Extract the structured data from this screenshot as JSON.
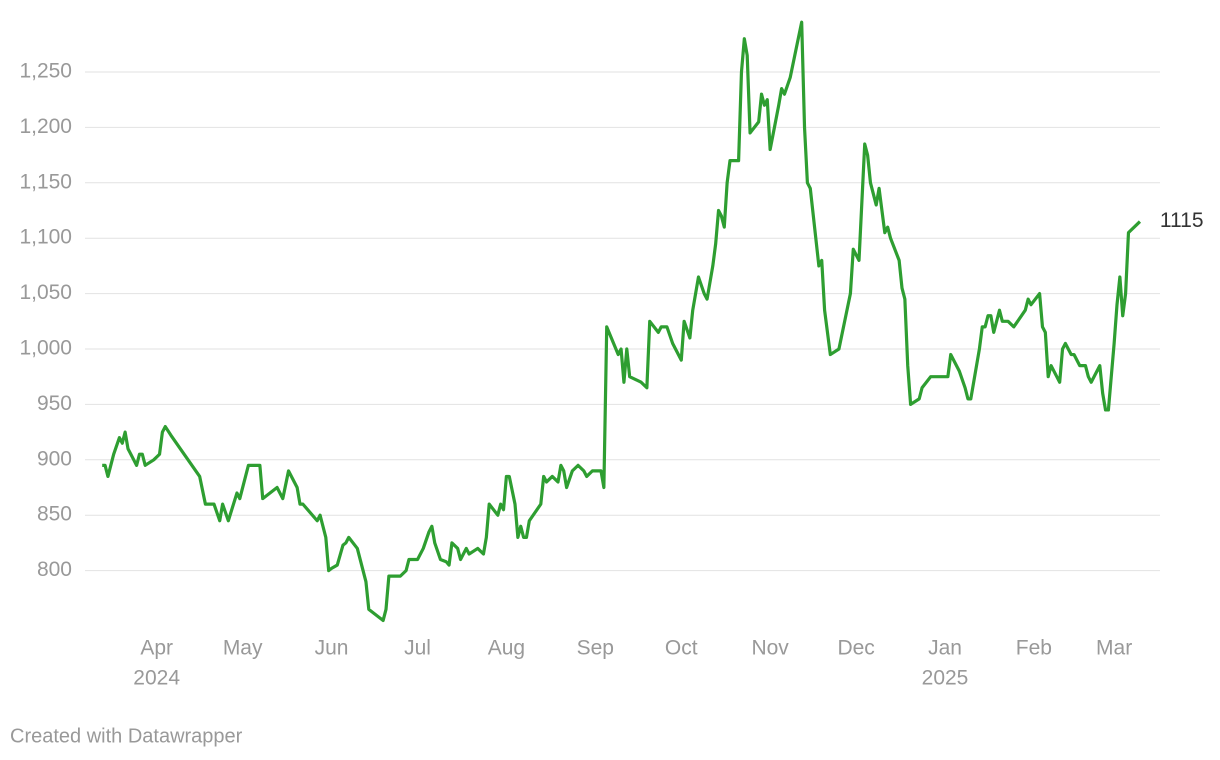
{
  "chart_data": {
    "type": "line",
    "x": [
      0,
      1,
      2,
      4,
      6,
      7,
      8,
      9,
      11,
      12,
      13,
      14,
      15,
      18,
      20,
      21,
      22,
      24,
      34,
      36,
      39,
      41,
      42,
      44,
      47,
      48,
      51,
      55,
      56,
      61,
      63,
      65,
      68,
      69,
      70,
      75,
      76,
      77,
      78,
      79,
      80,
      82,
      84,
      85,
      86,
      89,
      92,
      93,
      98,
      99,
      100,
      104,
      106,
      107,
      110,
      112,
      114,
      115,
      116,
      118,
      120,
      121,
      122,
      124,
      125,
      127,
      128,
      131,
      133,
      134,
      135,
      138,
      139,
      140,
      141,
      142,
      144,
      145,
      146,
      147,
      148,
      149,
      153,
      154,
      155,
      157,
      159,
      160,
      161,
      162,
      164,
      166,
      168,
      169,
      171,
      174,
      175,
      176,
      180,
      181,
      182,
      183,
      184,
      188,
      190,
      191,
      194,
      195,
      197,
      199,
      202,
      203,
      205,
      206,
      208,
      210,
      211,
      213,
      214,
      215,
      216,
      217,
      218,
      219,
      222,
      223,
      224,
      225,
      226,
      229,
      230,
      231,
      232,
      233,
      236,
      237,
      238,
      240,
      242,
      244,
      245,
      246,
      247,
      250,
      251,
      252,
      254,
      257,
      259,
      261,
      262,
      264,
      266,
      267,
      268,
      270,
      271,
      273,
      274,
      275,
      278,
      279,
      280,
      281,
      282,
      285,
      286,
      289,
      295,
      296,
      299,
      301,
      302,
      303,
      306,
      307,
      308,
      309,
      310,
      311,
      313,
      314,
      316,
      318,
      322,
      323,
      324,
      327,
      328,
      329,
      330,
      331,
      333,
      334,
      335,
      336,
      338,
      339,
      341,
      343,
      344,
      345,
      348,
      349,
      350,
      351,
      353,
      354,
      355,
      356,
      357,
      358,
      362
    ],
    "series": [
      {
        "color": "#2e9e31",
        "values": [
          895,
          895,
          885,
          905,
          920,
          915,
          925,
          910,
          900,
          895,
          905,
          905,
          895,
          900,
          905,
          925,
          930,
          922,
          885,
          860,
          860,
          845,
          860,
          845,
          870,
          865,
          895,
          895,
          865,
          875,
          865,
          890,
          875,
          860,
          860,
          845,
          850,
          840,
          830,
          800,
          802,
          805,
          823,
          825,
          830,
          820,
          790,
          765,
          755,
          765,
          795,
          795,
          800,
          810,
          810,
          820,
          835,
          840,
          825,
          810,
          808,
          805,
          825,
          820,
          810,
          820,
          815,
          820,
          815,
          830,
          860,
          850,
          860,
          855,
          885,
          885,
          860,
          830,
          840,
          830,
          830,
          845,
          860,
          885,
          880,
          885,
          880,
          895,
          890,
          875,
          890,
          895,
          890,
          885,
          890,
          890,
          875,
          1020,
          995,
          1000,
          970,
          1000,
          975,
          970,
          965,
          1025,
          1015,
          1020,
          1020,
          1005,
          990,
          1025,
          1010,
          1035,
          1065,
          1050,
          1045,
          1075,
          1095,
          1125,
          1120,
          1110,
          1150,
          1170,
          1170,
          1250,
          1280,
          1265,
          1195,
          1205,
          1230,
          1220,
          1225,
          1180,
          1220,
          1235,
          1230,
          1245,
          1270,
          1295,
          1200,
          1150,
          1145,
          1075,
          1080,
          1035,
          995,
          1000,
          1025,
          1050,
          1090,
          1080,
          1185,
          1175,
          1150,
          1130,
          1145,
          1105,
          1110,
          1100,
          1080,
          1055,
          1045,
          985,
          950,
          955,
          965,
          975,
          975,
          995,
          980,
          965,
          955,
          955,
          1000,
          1020,
          1020,
          1030,
          1030,
          1015,
          1035,
          1025,
          1025,
          1020,
          1035,
          1045,
          1040,
          1050,
          1020,
          1015,
          975,
          985,
          975,
          970,
          1000,
          1005,
          995,
          995,
          985,
          985,
          975,
          970,
          985,
          960,
          945,
          945,
          1005,
          1040,
          1065,
          1030,
          1050,
          1105,
          1115
        ]
      }
    ],
    "xlim": [
      -6,
      369
    ],
    "xticks": [
      {
        "value": 19,
        "label": "Apr"
      },
      {
        "value": 49,
        "label": "May"
      },
      {
        "value": 80,
        "label": "Jun"
      },
      {
        "value": 110,
        "label": "Jul"
      },
      {
        "value": 141,
        "label": "Aug"
      },
      {
        "value": 172,
        "label": "Sep"
      },
      {
        "value": 202,
        "label": "Oct"
      },
      {
        "value": 233,
        "label": "Nov"
      },
      {
        "value": 263,
        "label": "Dec"
      },
      {
        "value": 294,
        "label": "Jan"
      },
      {
        "value": 325,
        "label": "Feb"
      },
      {
        "value": 353,
        "label": "Mar"
      }
    ],
    "x_year_labels": [
      {
        "value": 19,
        "label": "2024"
      },
      {
        "value": 294,
        "label": "2025"
      }
    ],
    "ylim": [
      750,
      1300
    ],
    "yticks": [
      800,
      850,
      900,
      950,
      {
        "value": 1000,
        "label": "1,000"
      },
      {
        "value": 1050,
        "label": "1,050"
      },
      {
        "value": 1100,
        "label": "1,100"
      },
      {
        "value": 1150,
        "label": "1,150"
      },
      {
        "value": 1200,
        "label": "1,200"
      },
      {
        "value": 1250,
        "label": "1,250"
      }
    ],
    "grid": true,
    "credit": "Created with Datawrapper"
  }
}
